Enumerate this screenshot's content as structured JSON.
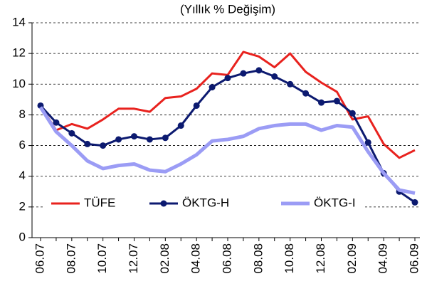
{
  "chart_data": {
    "type": "line",
    "title": "(Yıllık % Değişim)",
    "categories": [
      "06.07",
      null,
      "08.07",
      null,
      "10.07",
      null,
      "12.07",
      null,
      "02.08",
      null,
      "04.08",
      null,
      "06.08",
      null,
      "08.08",
      null,
      "10.08",
      null,
      "12.08",
      null,
      "02.09",
      null,
      "04.09",
      null,
      "06.09"
    ],
    "series": [
      {
        "name": "TÜFE",
        "color": "#e8221e",
        "values": [
          8.6,
          7.0,
          7.4,
          7.1,
          7.7,
          8.4,
          8.4,
          8.2,
          9.1,
          9.2,
          9.7,
          10.7,
          10.6,
          12.1,
          11.8,
          11.1,
          12.0,
          10.8,
          10.1,
          9.5,
          7.7,
          7.9,
          6.1,
          5.2,
          5.7
        ]
      },
      {
        "name": "ÖKTG-H",
        "color": "#0c1a70",
        "markers": true,
        "values": [
          8.6,
          7.5,
          6.8,
          6.1,
          6.0,
          6.4,
          6.6,
          6.4,
          6.5,
          7.3,
          8.6,
          9.8,
          10.4,
          10.7,
          10.9,
          10.5,
          10.0,
          9.4,
          8.8,
          8.9,
          8.1,
          6.2,
          4.2,
          3.0,
          2.3
        ]
      },
      {
        "name": "ÖKTG-I",
        "color": "#9b9cf5",
        "values": [
          8.5,
          6.9,
          6.0,
          5.0,
          4.5,
          4.7,
          4.8,
          4.4,
          4.3,
          4.8,
          5.4,
          6.3,
          6.4,
          6.6,
          7.1,
          7.3,
          7.4,
          7.4,
          7.0,
          7.3,
          7.2,
          5.6,
          4.2,
          3.1,
          2.9
        ]
      }
    ],
    "ylim": [
      0,
      14
    ],
    "yticks": [
      0,
      2,
      4,
      6,
      8,
      10,
      12,
      14
    ],
    "grid": true,
    "legend": "lower left"
  }
}
